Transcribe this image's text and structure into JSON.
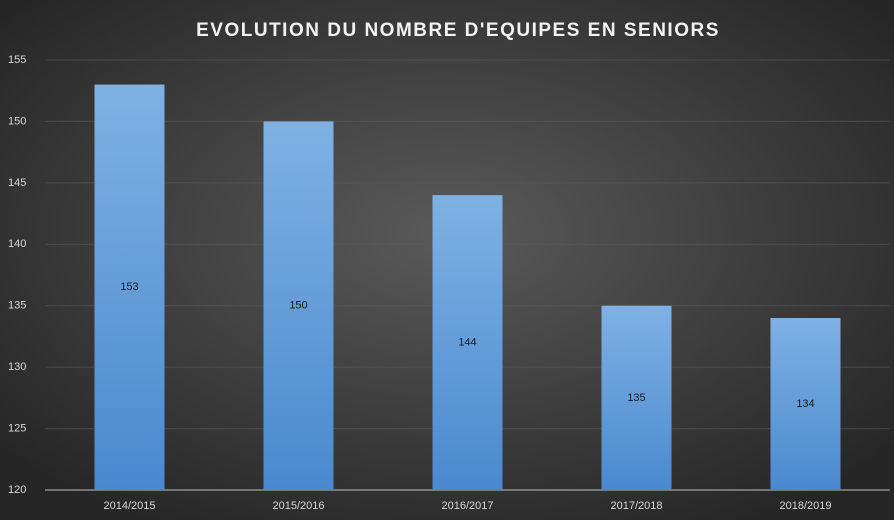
{
  "chart_data": {
    "type": "bar",
    "title": "EVOLUTION DU NOMBRE D'EQUIPES EN SENIORS",
    "categories": [
      "2014/2015",
      "2015/2016",
      "2016/2017",
      "2017/2018",
      "2018/2019"
    ],
    "values": [
      153,
      150,
      144,
      135,
      134
    ],
    "color": "#5b9bd5",
    "ylim": [
      120,
      155
    ],
    "yticks": [
      120,
      125,
      130,
      135,
      140,
      145,
      150,
      155
    ],
    "grid": true
  }
}
